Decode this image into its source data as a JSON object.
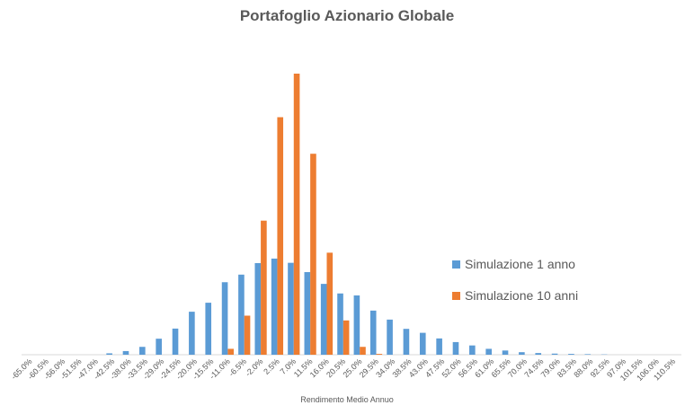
{
  "chart_data": {
    "type": "bar",
    "title": "Portafoglio Azionario Globale",
    "xlabel": "Rendimento Medio Annuo",
    "ylabel": "",
    "ylim": [
      0,
      1.0
    ],
    "grid": false,
    "legend_position": "right",
    "categories": [
      "-65.0%",
      "-60.5%",
      "-56.0%",
      "-51.5%",
      "-47.0%",
      "-42.5%",
      "-38.0%",
      "-33.5%",
      "-29.0%",
      "-24.5%",
      "-20.0%",
      "-15.5%",
      "-11.0%",
      "-6.5%",
      "-2.0%",
      "2.5%",
      "7.0%",
      "11.5%",
      "16.0%",
      "20.5%",
      "25.0%",
      "29.5%",
      "34.0%",
      "38.5%",
      "43.0%",
      "47.5%",
      "52.0%",
      "56.5%",
      "61.0%",
      "65.5%",
      "70.0%",
      "74.5%",
      "79.0%",
      "83.5%",
      "88.0%",
      "92.5%",
      "97.0%",
      "101.5%",
      "106.0%",
      "110.5%"
    ],
    "series": [
      {
        "name": "Simulazione 1 anno",
        "color": "#5B9BD5",
        "values": [
          0,
          0,
          0,
          0,
          0,
          0.005,
          0.013,
          0.028,
          0.057,
          0.093,
          0.153,
          0.185,
          0.258,
          0.285,
          0.326,
          0.342,
          0.327,
          0.294,
          0.252,
          0.218,
          0.211,
          0.157,
          0.125,
          0.092,
          0.078,
          0.058,
          0.045,
          0.033,
          0.021,
          0.015,
          0.009,
          0.006,
          0.004,
          0.003,
          0.002,
          0.001,
          0,
          0,
          0,
          0
        ]
      },
      {
        "name": "Simulazione 10 anni",
        "color": "#ED7D31",
        "values": [
          0,
          0,
          0,
          0,
          0,
          0,
          0,
          0,
          0,
          0,
          0,
          0,
          0.021,
          0.139,
          0.477,
          0.845,
          1.0,
          0.715,
          0.363,
          0.122,
          0.028,
          0.003,
          0,
          0,
          0,
          0,
          0,
          0,
          0,
          0,
          0,
          0,
          0,
          0,
          0,
          0,
          0,
          0,
          0,
          0
        ]
      }
    ]
  }
}
